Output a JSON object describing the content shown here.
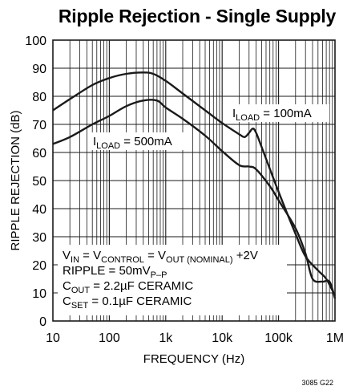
{
  "chart_data": {
    "type": "line",
    "title": "Ripple Rejection - Single Supply",
    "xlabel": "FREQUENCY (Hz)",
    "ylabel": "RIPPLE REJECTION (dB)",
    "x_scale": "log",
    "xlim": [
      10,
      1000000
    ],
    "ylim": [
      0,
      100
    ],
    "x_ticks": [
      10,
      100,
      1000,
      10000,
      100000,
      1000000
    ],
    "x_tick_labels": [
      "10",
      "100",
      "1k",
      "10k",
      "100k",
      "1M"
    ],
    "y_ticks": [
      0,
      10,
      20,
      30,
      40,
      50,
      60,
      70,
      80,
      90,
      100
    ],
    "y_tick_labels": [
      "0",
      "10",
      "20",
      "30",
      "40",
      "50",
      "60",
      "70",
      "80",
      "90",
      "100"
    ],
    "grid": true,
    "series": [
      {
        "name": "ILOAD = 100mA",
        "label": {
          "main": "I",
          "sub": "LOAD",
          "rest": " = 100mA"
        },
        "points": [
          [
            10,
            75
          ],
          [
            20,
            79
          ],
          [
            50,
            84
          ],
          [
            100,
            86.5
          ],
          [
            200,
            88
          ],
          [
            400,
            88.5
          ],
          [
            600,
            88
          ],
          [
            1000,
            85.5
          ],
          [
            2000,
            81
          ],
          [
            5000,
            75
          ],
          [
            10000,
            70.5
          ],
          [
            20000,
            66.5
          ],
          [
            25000,
            65.5
          ],
          [
            30000,
            67
          ],
          [
            35000,
            68.5
          ],
          [
            40000,
            67
          ],
          [
            50000,
            62
          ],
          [
            100000,
            46
          ],
          [
            200000,
            31
          ],
          [
            300000,
            23
          ],
          [
            500000,
            18
          ],
          [
            700000,
            15
          ],
          [
            1000000,
            9
          ]
        ]
      },
      {
        "name": "ILOAD = 500mA",
        "label": {
          "main": "I",
          "sub": "LOAD",
          "rest": " = 500mA"
        },
        "points": [
          [
            10,
            63
          ],
          [
            20,
            65.5
          ],
          [
            50,
            70
          ],
          [
            100,
            73
          ],
          [
            200,
            76.5
          ],
          [
            400,
            78.5
          ],
          [
            700,
            78.5
          ],
          [
            1000,
            76
          ],
          [
            2000,
            72
          ],
          [
            5000,
            66
          ],
          [
            10000,
            60.5
          ],
          [
            20000,
            55.5
          ],
          [
            30000,
            55
          ],
          [
            40000,
            54
          ],
          [
            70000,
            48
          ],
          [
            100000,
            43
          ],
          [
            200000,
            33
          ],
          [
            300000,
            24
          ],
          [
            400000,
            15
          ],
          [
            600000,
            14
          ],
          [
            800000,
            14
          ],
          [
            1000000,
            8
          ]
        ]
      }
    ],
    "conditions": [
      {
        "parts": [
          [
            "V",
            ""
          ],
          [
            "IN",
            "sub"
          ],
          [
            " = V",
            ""
          ],
          [
            "CONTROL",
            "sub"
          ],
          [
            " = V",
            ""
          ],
          [
            "OUT (NOMINAL)",
            "sub"
          ],
          [
            " +2V",
            ""
          ]
        ]
      },
      {
        "parts": [
          [
            "RIPPLE = 50mV",
            ""
          ],
          [
            "P–P",
            "sub"
          ]
        ]
      },
      {
        "parts": [
          [
            "C",
            ""
          ],
          [
            "OUT",
            "sub"
          ],
          [
            " = 2.2µF CERAMIC",
            ""
          ]
        ]
      },
      {
        "parts": [
          [
            "C",
            ""
          ],
          [
            "SET",
            "sub"
          ],
          [
            " = 0.1µF CERAMIC",
            ""
          ]
        ]
      }
    ],
    "figure_code": "3085 G22"
  }
}
